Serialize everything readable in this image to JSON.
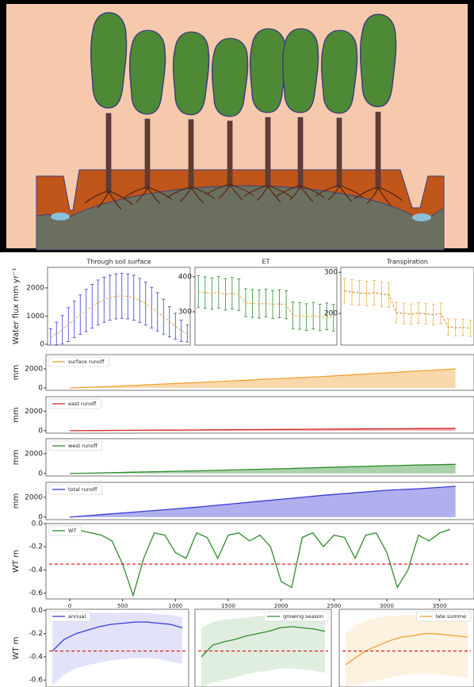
{
  "chart_data": [
    {
      "type": "errorbar",
      "title": "Through soil surface",
      "ylabel": "Water flux mm yr⁻¹",
      "ylim": [
        -30,
        2730
      ],
      "yticks": [
        0,
        1000,
        2000
      ],
      "line_color": "#f0a040",
      "series": [
        {
          "color": "#3a3ad8",
          "values": [
            250,
            380,
            520,
            700,
            880,
            1050,
            1200,
            1350,
            1480,
            1580,
            1650,
            1700,
            1720,
            1700,
            1650,
            1560,
            1440,
            1300,
            1150,
            980,
            800,
            640,
            480,
            380
          ],
          "errors": [
            300,
            400,
            500,
            600,
            650,
            700,
            750,
            780,
            800,
            800,
            800,
            800,
            800,
            800,
            800,
            780,
            760,
            720,
            680,
            620,
            540,
            460,
            380,
            300
          ]
        }
      ]
    },
    {
      "type": "errorbar",
      "title": "ET",
      "ylim": [
        205,
        427
      ],
      "yticks": [
        300,
        400
      ],
      "line_color": "#f0a040",
      "series": [
        {
          "color": "#2e8b2e",
          "values": [
            358,
            355,
            352,
            356,
            350,
            353,
            349,
            326,
            324,
            322,
            325,
            321,
            323,
            320,
            290,
            288,
            285,
            289,
            284,
            287,
            283
          ],
          "errors": [
            45,
            45,
            45,
            45,
            45,
            45,
            45,
            40,
            40,
            40,
            40,
            40,
            40,
            40,
            38,
            38,
            38,
            38,
            38,
            38,
            38
          ]
        }
      ]
    },
    {
      "type": "errorbar",
      "title": "Transpiration",
      "ylim": [
        123,
        312
      ],
      "yticks": [
        200,
        300
      ],
      "line_color": "#d08020",
      "series": [
        {
          "color": "#f0b040",
          "values": [
            255,
            252,
            250,
            248,
            250,
            247,
            245,
            202,
            200,
            198,
            201,
            199,
            197,
            200,
            167,
            165,
            166,
            164
          ],
          "errors": [
            30,
            30,
            30,
            30,
            30,
            30,
            30,
            25,
            25,
            25,
            25,
            25,
            25,
            25,
            20,
            20,
            20,
            20
          ]
        }
      ]
    },
    {
      "type": "area",
      "ylabel": "mm",
      "ylim": [
        -250,
        3500
      ],
      "yticks": [
        0,
        2000
      ],
      "xlim": [
        -225,
        3825
      ],
      "legend": "upper left",
      "series": [
        {
          "name": "surface runoff",
          "color": "#f0a030",
          "x": [
            0,
            300,
            600,
            900,
            1200,
            1500,
            1800,
            2100,
            2400,
            2700,
            3000,
            3300,
            3650
          ],
          "values": [
            0,
            120,
            260,
            420,
            560,
            720,
            880,
            1040,
            1200,
            1400,
            1580,
            1780,
            2000
          ]
        }
      ]
    },
    {
      "type": "area",
      "ylabel": "mm",
      "ylim": [
        -250,
        3500
      ],
      "yticks": [
        0,
        2000
      ],
      "xlim": [
        -225,
        3825
      ],
      "legend": "upper left",
      "series": [
        {
          "name": "east runoff",
          "color": "#d62728",
          "x": [
            0,
            300,
            600,
            900,
            1200,
            1500,
            1800,
            2100,
            2400,
            2700,
            3000,
            3300,
            3650
          ],
          "values": [
            0,
            20,
            40,
            60,
            80,
            100,
            120,
            140,
            160,
            180,
            200,
            220,
            250
          ]
        }
      ]
    },
    {
      "type": "area",
      "ylabel": "mm",
      "ylim": [
        -250,
        3500
      ],
      "yticks": [
        0,
        2000
      ],
      "xlim": [
        -225,
        3825
      ],
      "legend": "upper left",
      "series": [
        {
          "name": "west runoff",
          "color": "#2e8b2e",
          "x": [
            0,
            300,
            600,
            900,
            1200,
            1500,
            1800,
            2100,
            2400,
            2700,
            3000,
            3300,
            3650
          ],
          "values": [
            0,
            60,
            130,
            200,
            270,
            350,
            430,
            510,
            600,
            690,
            780,
            850,
            920
          ]
        }
      ]
    },
    {
      "type": "area",
      "ylabel": "mm",
      "ylim": [
        -250,
        3500
      ],
      "yticks": [
        0,
        2000
      ],
      "xlim": [
        -225,
        3825
      ],
      "legend": "upper left",
      "series": [
        {
          "name": "total runoff",
          "color": "#3a3ad8",
          "x": [
            0,
            300,
            600,
            900,
            1200,
            1500,
            1800,
            2100,
            2400,
            2700,
            3000,
            3300,
            3650
          ],
          "values": [
            0,
            250,
            500,
            750,
            1000,
            1300,
            1600,
            1900,
            2200,
            2450,
            2700,
            2850,
            3100
          ]
        }
      ]
    },
    {
      "type": "line",
      "ylabel": "WT m",
      "ylim": [
        -0.65,
        0
      ],
      "yticks": [
        {
          "value": 0,
          "label": "0.0"
        },
        -0.2,
        -0.4,
        -0.6
      ],
      "xlim": [
        -225,
        3825
      ],
      "xticks": [
        0,
        500,
        1000,
        1500,
        2000,
        2500,
        3000,
        3500
      ],
      "legend": "upper left",
      "threshold": -0.35,
      "threshold_color": "#e02020",
      "series": [
        {
          "name": "WT",
          "color": "#2e8b2e",
          "x": [
            0,
            100,
            200,
            300,
            400,
            500,
            600,
            700,
            800,
            900,
            1000,
            1100,
            1200,
            1300,
            1400,
            1500,
            1600,
            1700,
            1800,
            1900,
            2000,
            2100,
            2200,
            2300,
            2400,
            2500,
            2600,
            2700,
            2800,
            2900,
            3000,
            3100,
            3200,
            3300,
            3400,
            3500,
            3600
          ],
          "values": [
            -0.02,
            -0.06,
            -0.08,
            -0.1,
            -0.15,
            -0.35,
            -0.62,
            -0.3,
            -0.08,
            -0.1,
            -0.25,
            -0.3,
            -0.08,
            -0.12,
            -0.3,
            -0.1,
            -0.08,
            -0.15,
            -0.1,
            -0.2,
            -0.5,
            -0.55,
            -0.12,
            -0.08,
            -0.2,
            -0.1,
            -0.12,
            -0.3,
            -0.1,
            -0.08,
            -0.25,
            -0.55,
            -0.4,
            -0.1,
            -0.15,
            -0.08,
            -0.05
          ]
        }
      ]
    },
    {
      "type": "band",
      "ylabel": "WT m",
      "ylim": [
        -0.66,
        0.01
      ],
      "yticks": [
        {
          "value": 0,
          "label": "0.0"
        },
        -0.2,
        -0.4,
        -0.6
      ],
      "legend": "upper left",
      "threshold": -0.35,
      "threshold_color": "#e02020",
      "series": [
        {
          "name": "annual",
          "color": "#3a3ad8",
          "values": [
            -0.35,
            -0.25,
            -0.2,
            -0.17,
            -0.14,
            -0.12,
            -0.11,
            -0.1,
            -0.1,
            -0.11,
            -0.12,
            -0.15
          ],
          "upper": [
            -0.1,
            -0.05,
            -0.03,
            -0.02,
            -0.02,
            -0.02,
            -0.02,
            -0.02,
            -0.02,
            -0.03,
            -0.04,
            -0.06
          ],
          "lower": [
            -0.65,
            -0.55,
            -0.5,
            -0.47,
            -0.45,
            -0.43,
            -0.42,
            -0.41,
            -0.41,
            -0.42,
            -0.44,
            -0.46
          ]
        }
      ]
    },
    {
      "type": "band",
      "ylim": [
        -0.66,
        0.01
      ],
      "legend": "upper right",
      "threshold": -0.35,
      "threshold_color": "#e02020",
      "series": [
        {
          "name": "growing season",
          "color": "#2e8b2e",
          "values": [
            -0.4,
            -0.3,
            -0.27,
            -0.25,
            -0.22,
            -0.2,
            -0.18,
            -0.15,
            -0.14,
            -0.15,
            -0.16,
            -0.18
          ],
          "upper": [
            -0.15,
            -0.1,
            -0.08,
            -0.07,
            -0.06,
            -0.05,
            -0.05,
            -0.05,
            -0.05,
            -0.06,
            -0.07,
            -0.08
          ],
          "lower": [
            -0.66,
            -0.62,
            -0.6,
            -0.58,
            -0.55,
            -0.53,
            -0.52,
            -0.5,
            -0.5,
            -0.51,
            -0.52,
            -0.54
          ]
        }
      ]
    },
    {
      "type": "band",
      "ylim": [
        -0.66,
        0.01
      ],
      "legend": "upper right",
      "threshold": -0.35,
      "threshold_color": "#e02020",
      "series": [
        {
          "name": "late summe",
          "color": "#f0a030",
          "values": [
            -0.47,
            -0.4,
            -0.34,
            -0.3,
            -0.26,
            -0.23,
            -0.22,
            -0.2,
            -0.2,
            -0.21,
            -0.22,
            -0.23
          ],
          "upper": [
            -0.2,
            -0.12,
            -0.08,
            -0.06,
            -0.05,
            -0.04,
            -0.04,
            -0.04,
            -0.04,
            -0.05,
            -0.05,
            -0.06
          ],
          "lower": [
            -0.66,
            -0.64,
            -0.62,
            -0.6,
            -0.58,
            -0.56,
            -0.55,
            -0.55,
            -0.55,
            -0.56,
            -0.57,
            -0.58
          ]
        }
      ]
    }
  ]
}
